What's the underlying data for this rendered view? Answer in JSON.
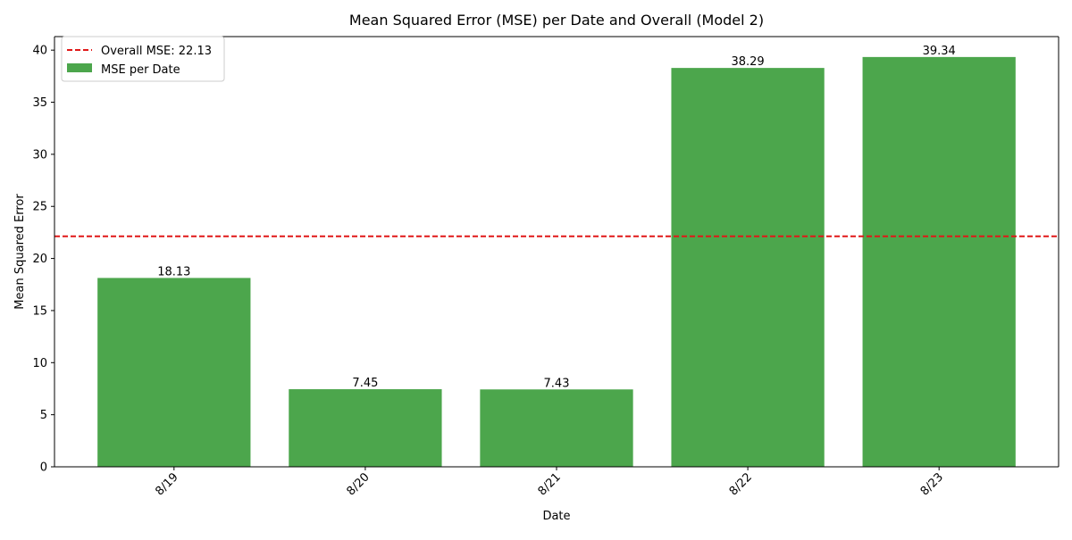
{
  "chart_data": {
    "type": "bar",
    "title": "Mean Squared Error (MSE) per Date and Overall (Model 2)",
    "xlabel": "Date",
    "ylabel": "Mean Squared Error",
    "categories": [
      "8/19",
      "8/20",
      "8/21",
      "8/22",
      "8/23"
    ],
    "series": [
      {
        "name": "MSE per Date",
        "values": [
          18.13,
          7.45,
          7.43,
          38.29,
          39.34
        ],
        "color": "#4ca64c"
      }
    ],
    "data_labels": [
      "18.13",
      "7.45",
      "7.43",
      "38.29",
      "39.34"
    ],
    "reference_line": {
      "name": "Overall MSE: 22.13",
      "value": 22.13,
      "color": "#e01818",
      "style": "dashed"
    },
    "ylim": [
      0,
      41.3
    ],
    "yticks": [
      0,
      5,
      10,
      15,
      20,
      25,
      30,
      35,
      40
    ],
    "xtick_rotation_deg": 45,
    "grid": false,
    "legend_position": "upper-left"
  }
}
